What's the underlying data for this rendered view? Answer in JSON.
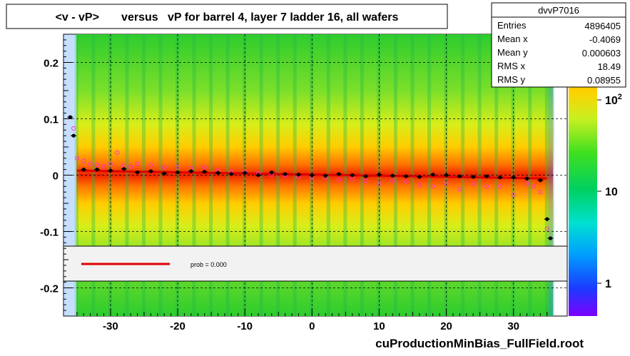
{
  "title": "<v - vP>       versus   vP for barrel 4, layer 7 ladder 16, all wafers",
  "footer": "cuProductionMinBias_FullField.root",
  "stats": {
    "name": "dvvP7016",
    "rows": [
      {
        "label": "Entries",
        "value": "4896405"
      },
      {
        "label": "Mean x",
        "value": "-0.4069"
      },
      {
        "label": "Mean y",
        "value": "0.000603"
      },
      {
        "label": "RMS x",
        "value": "18.49"
      },
      {
        "label": "RMS y",
        "value": "0.08955"
      }
    ]
  },
  "legend": {
    "fit_label": "prob = 0.000"
  },
  "colors": {
    "fit_line": "#e00000",
    "profile_points": "#000000",
    "alt_points": "#ff33cc"
  },
  "chart_data": {
    "type": "heatmap",
    "title": "<v - vP>       versus   vP for barrel 4, layer 7 ladder 16, all wafers",
    "xlabel": "",
    "ylabel": "",
    "xlim": [
      -37,
      38
    ],
    "ylim": [
      -0.25,
      0.25
    ],
    "x_ticks": [
      -30,
      -20,
      -10,
      0,
      10,
      20,
      30
    ],
    "y_ticks": [
      -0.2,
      -0.1,
      0,
      0.1,
      0.2
    ],
    "grid": true,
    "z_scale": "log",
    "z_ticks": [
      {
        "label": "1",
        "value": 1
      },
      {
        "label": "10",
        "value": 10
      },
      {
        "label": "10",
        "sup": "2",
        "value": 100
      }
    ],
    "fit_line": {
      "x": [
        -35,
        35
      ],
      "y": [
        0.008,
        -0.006
      ]
    },
    "profile": {
      "x": [
        -36,
        -35.5,
        -34,
        -32,
        -30,
        -28,
        -26,
        -24,
        -22,
        -20,
        -18,
        -16,
        -14,
        -12,
        -10,
        -8,
        -6,
        -4,
        -2,
        0,
        2,
        4,
        6,
        8,
        10,
        12,
        14,
        16,
        18,
        20,
        22,
        24,
        26,
        28,
        30,
        32,
        34,
        35,
        35.5
      ],
      "y": [
        0.103,
        0.07,
        0.01,
        0.01,
        0.008,
        0.011,
        0.005,
        0.007,
        0.003,
        0.005,
        0.007,
        0.006,
        0.004,
        0.002,
        0.004,
        0.0,
        0.005,
        0.002,
        0.001,
        0.0,
        -0.001,
        0.002,
        0.0,
        -0.002,
        0.001,
        -0.001,
        -0.002,
        -0.003,
        0.001,
        0.0,
        -0.002,
        -0.003,
        -0.002,
        -0.004,
        -0.004,
        -0.006,
        -0.009,
        -0.078,
        -0.112
      ]
    },
    "alt_profile": {
      "x": [
        -35.5,
        -35,
        -34,
        -33,
        -32,
        -31,
        -30,
        -29,
        -28,
        -27,
        -26,
        -24,
        -22,
        -20,
        -18,
        -16,
        -14,
        -12,
        -10,
        -8,
        -6,
        -4,
        -2,
        0,
        2,
        4,
        6,
        8,
        10,
        12,
        14,
        16,
        18,
        20,
        22,
        24,
        26,
        28,
        30,
        32,
        33,
        34,
        35
      ],
      "y": [
        0.083,
        0.03,
        0.025,
        0.02,
        0.018,
        0.015,
        0.02,
        0.04,
        0.017,
        0.015,
        0.02,
        0.018,
        0.014,
        0.015,
        0.012,
        0.014,
        0.008,
        0.006,
        0.005,
        0.003,
        0.001,
        0.0,
        -0.003,
        -0.005,
        -0.004,
        -0.008,
        -0.006,
        -0.01,
        -0.015,
        -0.01,
        -0.012,
        -0.018,
        -0.02,
        -0.015,
        -0.025,
        -0.015,
        -0.02,
        -0.02,
        -0.035,
        -0.015,
        -0.02,
        -0.03,
        -0.095
      ]
    }
  }
}
